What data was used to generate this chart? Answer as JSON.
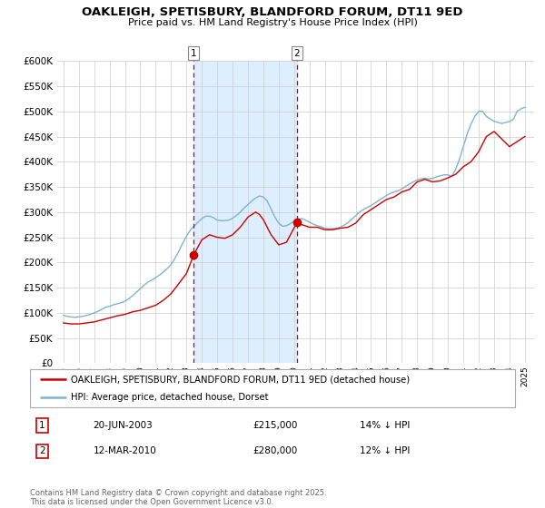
{
  "title": "OAKLEIGH, SPETISBURY, BLANDFORD FORUM, DT11 9ED",
  "subtitle": "Price paid vs. HM Land Registry's House Price Index (HPI)",
  "ylim": [
    0,
    600000
  ],
  "yticks": [
    0,
    50000,
    100000,
    150000,
    200000,
    250000,
    300000,
    350000,
    400000,
    450000,
    500000,
    550000,
    600000
  ],
  "ytick_labels": [
    "£0",
    "£50K",
    "£100K",
    "£150K",
    "£200K",
    "£250K",
    "£300K",
    "£350K",
    "£400K",
    "£450K",
    "£500K",
    "£550K",
    "£600K"
  ],
  "xlim_start": 1994.6,
  "xlim_end": 2025.6,
  "marker1_x": 2003.47,
  "marker1_y": 215000,
  "marker2_x": 2010.19,
  "marker2_y": 280000,
  "vline1_x": 2003.47,
  "vline2_x": 2010.19,
  "shade_xstart": 2003.47,
  "shade_xend": 2010.19,
  "legend_label_red": "OAKLEIGH, SPETISBURY, BLANDFORD FORUM, DT11 9ED (detached house)",
  "legend_label_blue": "HPI: Average price, detached house, Dorset",
  "note1_box": "1",
  "note1_date": "20-JUN-2003",
  "note1_price": "£215,000",
  "note1_hpi": "14% ↓ HPI",
  "note2_box": "2",
  "note2_date": "12-MAR-2010",
  "note2_price": "£280,000",
  "note2_hpi": "12% ↓ HPI",
  "footer": "Contains HM Land Registry data © Crown copyright and database right 2025.\nThis data is licensed under the Open Government Licence v3.0.",
  "red_color": "#cc0000",
  "blue_color": "#7fb3d3",
  "shade_color": "#ddeeff",
  "grid_color": "#cccccc",
  "background_color": "#ffffff",
  "hpi_years": [
    1995.0,
    1995.25,
    1995.5,
    1995.75,
    1996.0,
    1996.25,
    1996.5,
    1996.75,
    1997.0,
    1997.25,
    1997.5,
    1997.75,
    1998.0,
    1998.25,
    1998.5,
    1998.75,
    1999.0,
    1999.25,
    1999.5,
    1999.75,
    2000.0,
    2000.25,
    2000.5,
    2000.75,
    2001.0,
    2001.25,
    2001.5,
    2001.75,
    2002.0,
    2002.25,
    2002.5,
    2002.75,
    2003.0,
    2003.25,
    2003.5,
    2003.75,
    2004.0,
    2004.25,
    2004.5,
    2004.75,
    2005.0,
    2005.25,
    2005.5,
    2005.75,
    2006.0,
    2006.25,
    2006.5,
    2006.75,
    2007.0,
    2007.25,
    2007.5,
    2007.75,
    2008.0,
    2008.25,
    2008.5,
    2008.75,
    2009.0,
    2009.25,
    2009.5,
    2009.75,
    2010.0,
    2010.25,
    2010.5,
    2010.75,
    2011.0,
    2011.25,
    2011.5,
    2011.75,
    2012.0,
    2012.25,
    2012.5,
    2012.75,
    2013.0,
    2013.25,
    2013.5,
    2013.75,
    2014.0,
    2014.25,
    2014.5,
    2014.75,
    2015.0,
    2015.25,
    2015.5,
    2015.75,
    2016.0,
    2016.25,
    2016.5,
    2016.75,
    2017.0,
    2017.25,
    2017.5,
    2017.75,
    2018.0,
    2018.25,
    2018.5,
    2018.75,
    2019.0,
    2019.25,
    2019.5,
    2019.75,
    2020.0,
    2020.25,
    2020.5,
    2020.75,
    2021.0,
    2021.25,
    2021.5,
    2021.75,
    2022.0,
    2022.25,
    2022.5,
    2022.75,
    2023.0,
    2023.25,
    2023.5,
    2023.75,
    2024.0,
    2024.25,
    2024.5,
    2024.75,
    2025.0
  ],
  "hpi_values": [
    95000,
    93000,
    92000,
    91000,
    92000,
    93000,
    95000,
    97000,
    100000,
    103000,
    107000,
    111000,
    113000,
    116000,
    118000,
    120000,
    123000,
    128000,
    134000,
    141000,
    148000,
    155000,
    161000,
    165000,
    170000,
    175000,
    181000,
    188000,
    196000,
    208000,
    222000,
    238000,
    252000,
    264000,
    272000,
    280000,
    287000,
    292000,
    292000,
    289000,
    284000,
    283000,
    283000,
    284000,
    288000,
    293000,
    300000,
    308000,
    315000,
    322000,
    328000,
    332000,
    330000,
    322000,
    306000,
    290000,
    278000,
    272000,
    273000,
    277000,
    282000,
    286000,
    287000,
    284000,
    280000,
    276000,
    273000,
    271000,
    268000,
    267000,
    267000,
    268000,
    270000,
    274000,
    279000,
    286000,
    293000,
    300000,
    305000,
    309000,
    313000,
    318000,
    323000,
    328000,
    333000,
    337000,
    340000,
    342000,
    346000,
    351000,
    356000,
    360000,
    364000,
    366000,
    367000,
    366000,
    367000,
    370000,
    372000,
    374000,
    374000,
    371000,
    385000,
    405000,
    430000,
    455000,
    475000,
    490000,
    500000,
    500000,
    490000,
    485000,
    480000,
    478000,
    476000,
    478000,
    480000,
    484000,
    500000,
    505000,
    508000
  ],
  "red_years": [
    1995.0,
    1995.5,
    1996.0,
    1996.5,
    1997.0,
    1997.5,
    1998.0,
    1998.5,
    1999.0,
    1999.5,
    2000.0,
    2000.5,
    2001.0,
    2001.5,
    2002.0,
    2002.5,
    2003.0,
    2003.47,
    2004.0,
    2004.5,
    2005.0,
    2005.5,
    2006.0,
    2006.5,
    2007.0,
    2007.5,
    2007.75,
    2008.0,
    2008.5,
    2009.0,
    2009.5,
    2010.19,
    2010.5,
    2011.0,
    2011.5,
    2012.0,
    2012.5,
    2013.0,
    2013.5,
    2014.0,
    2014.5,
    2015.0,
    2015.5,
    2016.0,
    2016.5,
    2017.0,
    2017.5,
    2018.0,
    2018.5,
    2019.0,
    2019.5,
    2020.0,
    2020.5,
    2021.0,
    2021.5,
    2022.0,
    2022.5,
    2023.0,
    2023.5,
    2024.0,
    2024.5,
    2025.0
  ],
  "red_values": [
    80000,
    78000,
    78000,
    80000,
    82000,
    86000,
    90000,
    94000,
    97000,
    102000,
    105000,
    110000,
    115000,
    125000,
    138000,
    158000,
    178000,
    215000,
    245000,
    255000,
    250000,
    248000,
    255000,
    270000,
    290000,
    300000,
    295000,
    285000,
    255000,
    235000,
    240000,
    280000,
    275000,
    270000,
    270000,
    265000,
    265000,
    268000,
    270000,
    278000,
    295000,
    305000,
    315000,
    325000,
    330000,
    340000,
    345000,
    360000,
    365000,
    360000,
    362000,
    368000,
    375000,
    390000,
    400000,
    420000,
    450000,
    460000,
    445000,
    430000,
    440000,
    450000
  ]
}
